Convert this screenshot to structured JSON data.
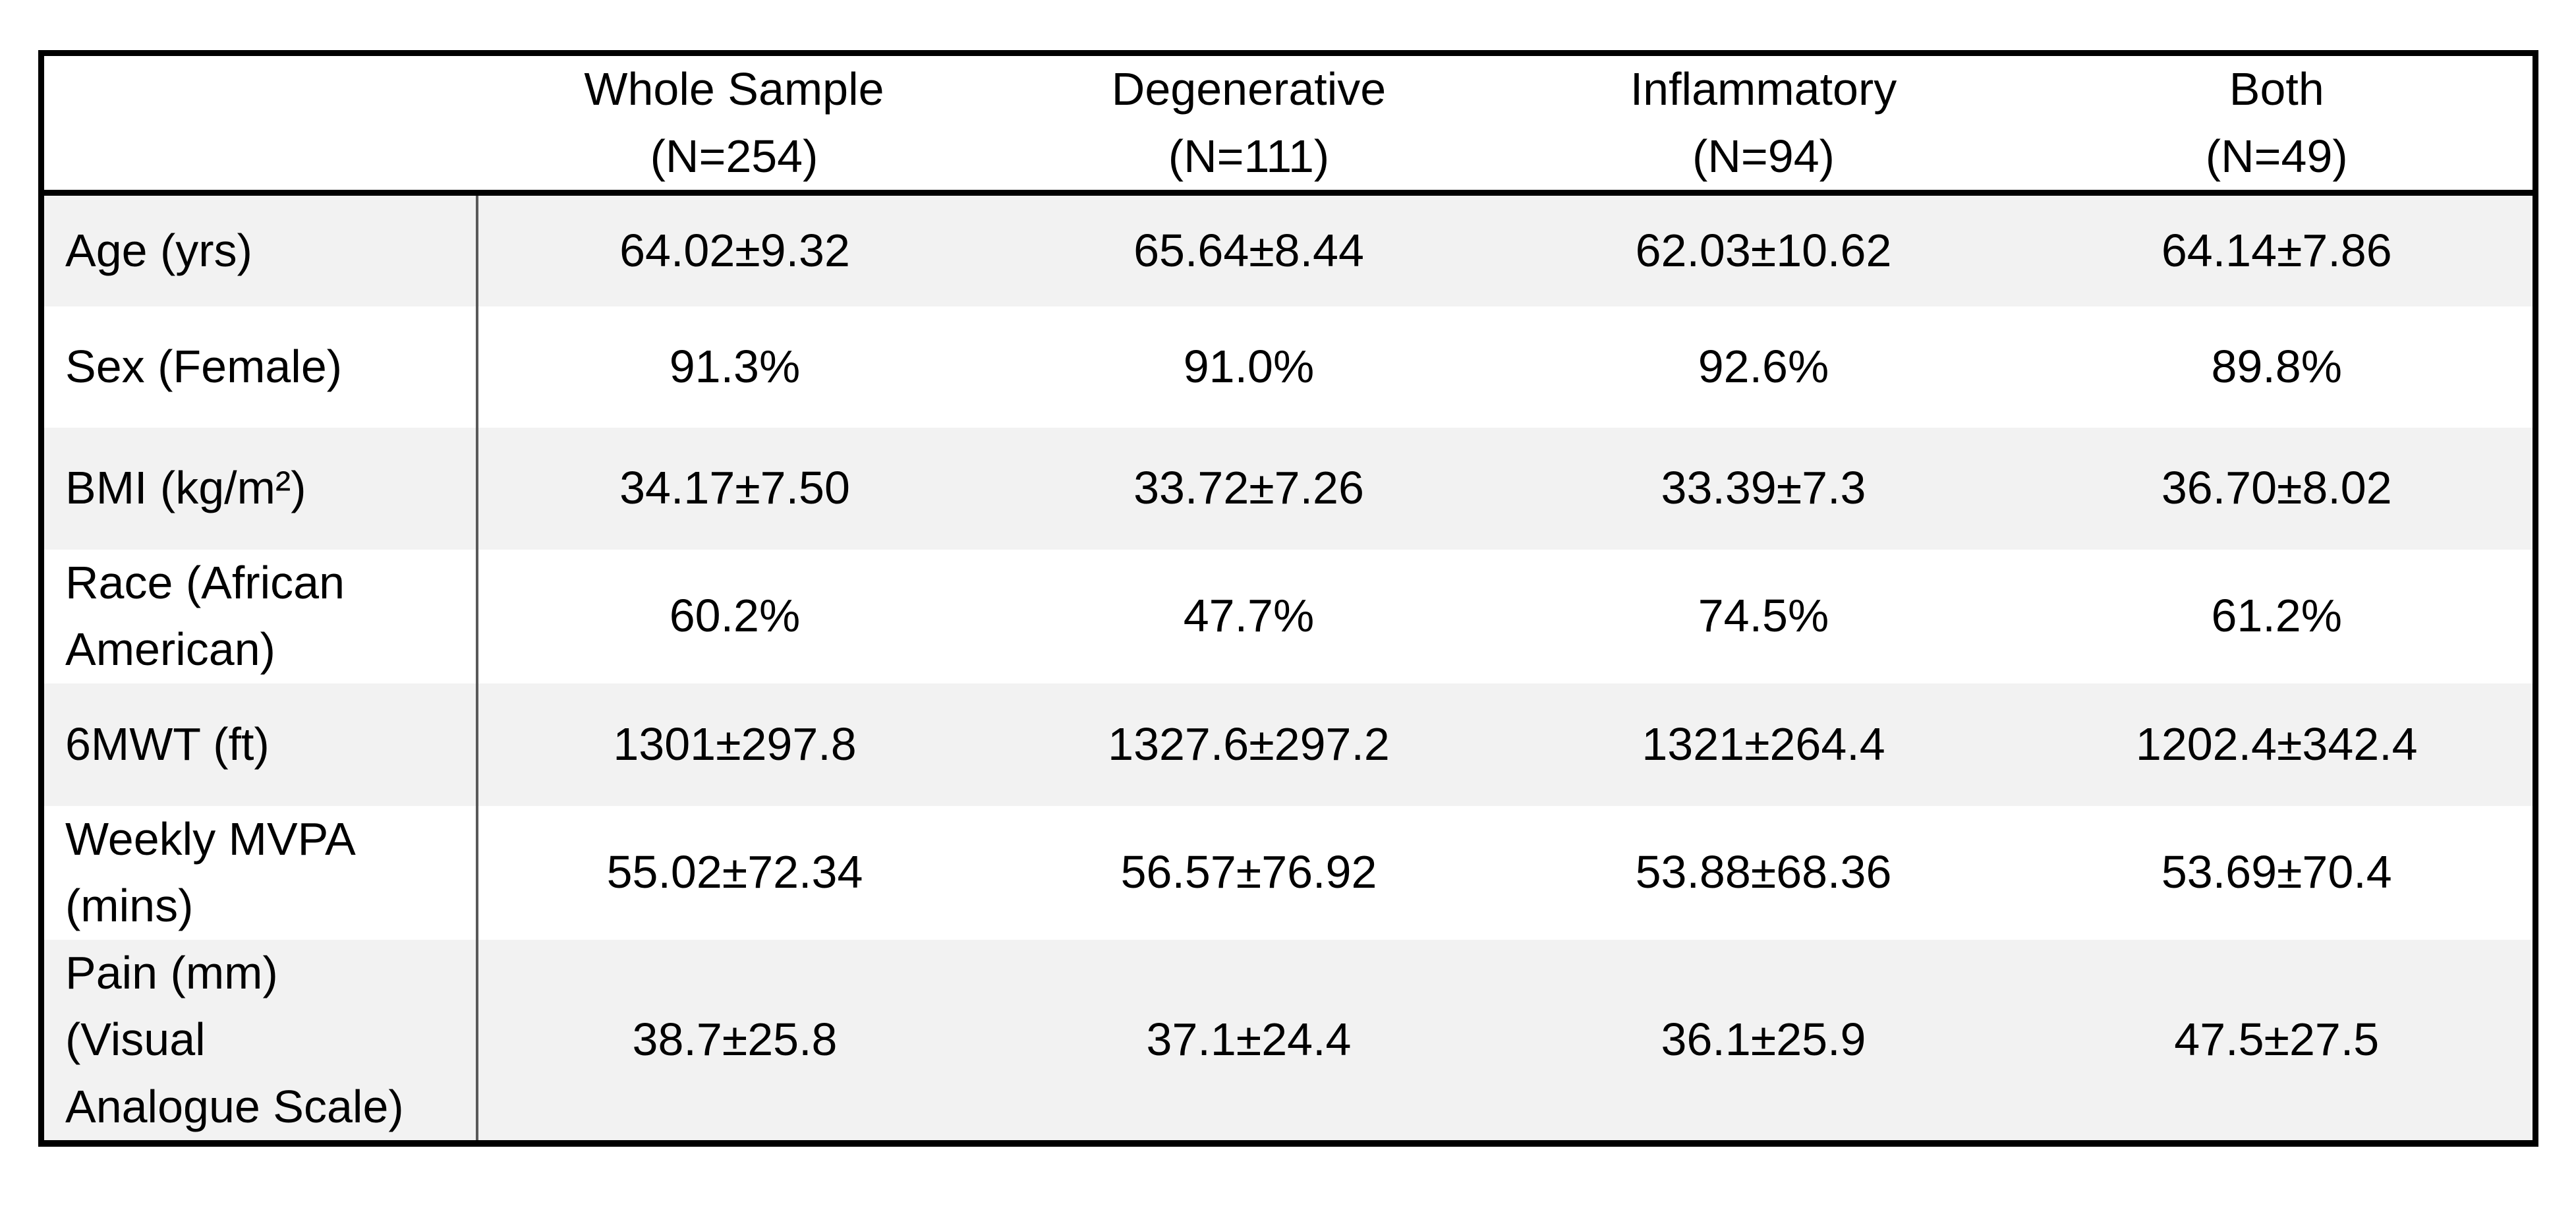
{
  "table": {
    "columns": [
      "Whole Sample\n(N=254)",
      "Degenerative\n(N=111)",
      "Inflammatory\n(N=94)",
      "Both\n(N=49)"
    ],
    "rows": [
      {
        "label": "Age (yrs)",
        "values": [
          "64.02±9.32",
          "65.64±8.44",
          "62.03±10.62",
          "64.14±7.86"
        ]
      },
      {
        "label": "Sex (Female)",
        "values": [
          "91.3%",
          "91.0%",
          "92.6%",
          "89.8%"
        ]
      },
      {
        "label": "BMI (kg/m²)",
        "values": [
          "34.17±7.50",
          "33.72±7.26",
          "33.39±7.3",
          "36.70±8.02"
        ]
      },
      {
        "label": "Race (African\nAmerican)",
        "values": [
          "60.2%",
          "47.7%",
          "74.5%",
          "61.2%"
        ]
      },
      {
        "label": "6MWT (ft)",
        "values": [
          "1301±297.8",
          "1327.6±297.2",
          "1321±264.4",
          "1202.4±342.4"
        ]
      },
      {
        "label": "Weekly MVPA\n(mins)",
        "values": [
          "55.02±72.34",
          "56.57±76.92",
          "53.88±68.36",
          "53.69±70.4"
        ]
      },
      {
        "label": "Pain (mm)\n(Visual\nAnalogue Scale)",
        "values": [
          "38.7±25.8",
          "37.1±24.4",
          "36.1±25.9",
          "47.5±27.5"
        ]
      }
    ],
    "colors": {
      "row_shade": "#f2f2f2",
      "outer_border": "#000000",
      "column_divider": "#595959"
    }
  }
}
